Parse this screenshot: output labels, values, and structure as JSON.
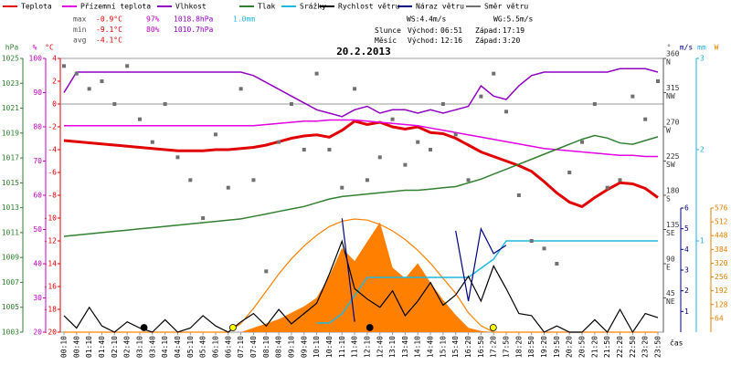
{
  "chart_data": {
    "type": "line",
    "title": "20.2.2013",
    "x_label": "čas",
    "categories": [
      "00:10",
      "00:40",
      "01:10",
      "01:40",
      "02:10",
      "02:40",
      "03:10",
      "03:40",
      "04:10",
      "04:40",
      "05:10",
      "05:40",
      "06:10",
      "06:40",
      "07:10",
      "07:40",
      "08:10",
      "08:40",
      "09:10",
      "09:40",
      "10:10",
      "10:40",
      "11:10",
      "11:40",
      "12:10",
      "12:40",
      "13:10",
      "13:40",
      "14:10",
      "14:40",
      "15:10",
      "15:40",
      "16:20",
      "16:50",
      "17:20",
      "17:50",
      "18:20",
      "18:50",
      "19:20",
      "19:50",
      "20:20",
      "20:50",
      "21:20",
      "21:50",
      "22:20",
      "22:50",
      "23:20",
      "23:50"
    ],
    "axes": [
      {
        "unit": "hPa",
        "color": "#308030",
        "lim": [
          1003,
          1025
        ],
        "ticks": [
          1025,
          1023,
          1021,
          1019,
          1017,
          1015,
          1013,
          1011,
          1009,
          1007,
          1005,
          1003
        ]
      },
      {
        "unit": "%",
        "color": "#c000c0",
        "lim": [
          20,
          100
        ],
        "ticks": [
          100,
          90,
          80,
          70,
          60,
          50,
          40,
          30,
          20
        ]
      },
      {
        "unit": "°C",
        "color": "#e00000",
        "lim": [
          -20,
          4
        ],
        "ticks": [
          4,
          2,
          0,
          -2,
          -4,
          -6,
          -8,
          -10,
          -12,
          -14,
          -16,
          -18,
          -20
        ]
      },
      {
        "unit": "°",
        "color": "#555555",
        "lim": [
          0,
          360
        ],
        "ticks": [
          360,
          315,
          270,
          225,
          180,
          135,
          90,
          45
        ],
        "compass": [
          "N",
          "NW",
          "W",
          "SW",
          "S",
          "SE",
          "E",
          "NE"
        ]
      },
      {
        "unit": "m/s",
        "color": "#000080",
        "lim": [
          0,
          6
        ],
        "ticks": [
          6,
          5,
          4,
          3,
          2,
          1
        ]
      },
      {
        "unit": "mm",
        "color": "#20b0e0",
        "lim": [
          0,
          3
        ],
        "ticks": [
          3,
          2,
          1
        ]
      },
      {
        "unit": "W",
        "color": "#e08000",
        "lim": [
          0,
          576
        ],
        "ticks": [
          576,
          512,
          448,
          384,
          320,
          256,
          192,
          128,
          64
        ]
      }
    ],
    "radiation": {
      "axis": "W",
      "color": "#ff8000",
      "values": [
        0,
        0,
        0,
        0,
        0,
        0,
        0,
        0,
        0,
        0,
        0,
        0,
        0,
        0,
        0,
        20,
        40,
        60,
        90,
        120,
        160,
        260,
        390,
        330,
        420,
        510,
        300,
        250,
        320,
        230,
        150,
        80,
        20,
        5,
        0,
        0,
        0,
        0,
        0,
        0,
        0,
        0,
        0,
        0,
        0,
        0,
        0,
        0
      ],
      "max_values": [
        0,
        0,
        0,
        0,
        0,
        0,
        0,
        0,
        0,
        0,
        0,
        0,
        0,
        0,
        40,
        110,
        190,
        270,
        340,
        400,
        450,
        490,
        515,
        525,
        520,
        500,
        470,
        430,
        380,
        320,
        250,
        180,
        90,
        30,
        0,
        0,
        0,
        0,
        0,
        0,
        0,
        0,
        0,
        0,
        0,
        0,
        0,
        0
      ]
    },
    "series": [
      {
        "name": "Teplota",
        "color": "#e00000",
        "axis": "°C",
        "values": [
          -3.2,
          -3.3,
          -3.4,
          -3.5,
          -3.6,
          -3.7,
          -3.8,
          -3.9,
          -4.0,
          -4.1,
          -4.1,
          -4.1,
          -4.0,
          -4.0,
          -3.9,
          -3.8,
          -3.6,
          -3.3,
          -3.0,
          -2.8,
          -2.7,
          -2.9,
          -2.3,
          -1.5,
          -1.8,
          -1.6,
          -2.0,
          -2.2,
          -2.0,
          -2.5,
          -2.6,
          -3.0,
          -3.6,
          -4.2,
          -4.6,
          -5.0,
          -5.4,
          -5.9,
          -6.8,
          -7.8,
          -8.6,
          -9.0,
          -8.2,
          -7.5,
          -6.9,
          -7.0,
          -7.4,
          -8.2
        ]
      },
      {
        "name": "Přízemní teplota",
        "color": "#e000e0",
        "axis": "°C",
        "values": [
          -1.9,
          -1.9,
          -1.9,
          -1.9,
          -1.9,
          -1.9,
          -1.9,
          -1.9,
          -1.9,
          -1.9,
          -1.9,
          -1.9,
          -1.9,
          -1.9,
          -1.9,
          -1.9,
          -1.8,
          -1.7,
          -1.6,
          -1.5,
          -1.5,
          -1.4,
          -1.4,
          -1.4,
          -1.5,
          -1.6,
          -1.7,
          -1.8,
          -1.9,
          -2.1,
          -2.3,
          -2.5,
          -2.7,
          -2.9,
          -3.1,
          -3.3,
          -3.5,
          -3.7,
          -3.9,
          -4.0,
          -4.1,
          -4.2,
          -4.3,
          -4.4,
          -4.5,
          -4.5,
          -4.6,
          -4.6
        ]
      },
      {
        "name": "Vlhkost",
        "color": "#9000c0",
        "axis": "%",
        "values": [
          90,
          96,
          96,
          96,
          96,
          96,
          96,
          96,
          96,
          96,
          96,
          96,
          96,
          96,
          96,
          95,
          93,
          91,
          89,
          87,
          85,
          84,
          83,
          85,
          86,
          84,
          85,
          85,
          84,
          85,
          84,
          85,
          86,
          92,
          89,
          88,
          92,
          95,
          96,
          96,
          96,
          96,
          96,
          96,
          97,
          97,
          97,
          96
        ]
      },
      {
        "name": "Tlak",
        "color": "#308030",
        "axis": "hPa",
        "values": [
          1010.7,
          1010.8,
          1010.9,
          1011.0,
          1011.1,
          1011.2,
          1011.3,
          1011.4,
          1011.5,
          1011.6,
          1011.7,
          1011.8,
          1011.9,
          1012.0,
          1012.1,
          1012.3,
          1012.5,
          1012.7,
          1012.9,
          1013.1,
          1013.4,
          1013.7,
          1013.9,
          1014.0,
          1014.1,
          1014.2,
          1014.3,
          1014.4,
          1014.4,
          1014.5,
          1014.6,
          1014.7,
          1015.0,
          1015.3,
          1015.7,
          1016.1,
          1016.5,
          1016.9,
          1017.3,
          1017.7,
          1018.1,
          1018.5,
          1018.8,
          1018.6,
          1018.2,
          1018.1,
          1018.4,
          1018.7
        ]
      },
      {
        "name": "Srážky",
        "color": "#20b8e0",
        "axis": "mm",
        "values": [
          null,
          null,
          null,
          null,
          null,
          null,
          null,
          null,
          null,
          null,
          null,
          null,
          null,
          null,
          null,
          null,
          null,
          null,
          null,
          null,
          0.1,
          0.1,
          0.2,
          0.4,
          0.6,
          0.6,
          0.6,
          0.6,
          0.6,
          0.6,
          0.6,
          0.6,
          0.6,
          0.7,
          0.8,
          1.0,
          1.0,
          1.0,
          1.0,
          1.0,
          1.0,
          1.0,
          1.0,
          1.0,
          1.0,
          1.0,
          1.0,
          1.0
        ]
      },
      {
        "name": "Rychlost větru",
        "color": "#000000",
        "axis": "m/s",
        "values": [
          0.8,
          0.2,
          1.2,
          0.3,
          0,
          0.5,
          0.2,
          0,
          0.6,
          0,
          0.2,
          0.8,
          0.3,
          0,
          0.5,
          0.9,
          0.3,
          1.1,
          0.4,
          0.9,
          1.4,
          2.8,
          4.4,
          2.1,
          1.6,
          1.2,
          2.0,
          0.8,
          1.5,
          2.4,
          1.3,
          1.8,
          2.7,
          1.5,
          3.2,
          2.1,
          0.9,
          0.8,
          0,
          0.3,
          0,
          0,
          0.6,
          0,
          1.1,
          0,
          0.9,
          0.7
        ]
      },
      {
        "name": "Náraz větru",
        "color": "#000080",
        "axis": "m/s",
        "values": [
          null,
          null,
          null,
          null,
          null,
          null,
          null,
          null,
          null,
          null,
          null,
          null,
          null,
          null,
          null,
          null,
          null,
          null,
          null,
          null,
          null,
          null,
          5.5,
          0.5,
          null,
          null,
          null,
          null,
          null,
          null,
          null,
          4.9,
          1.5,
          5.0,
          3.8,
          4.2,
          null,
          null,
          null,
          null,
          null,
          null,
          null,
          null,
          null,
          null,
          null,
          null
        ]
      },
      {
        "name": "Směr větru",
        "color": "#707070",
        "axis": "°",
        "dots": true,
        "values": [
          350,
          340,
          320,
          330,
          300,
          350,
          280,
          250,
          300,
          230,
          200,
          150,
          260,
          190,
          320,
          200,
          80,
          250,
          300,
          240,
          340,
          240,
          190,
          320,
          200,
          230,
          280,
          220,
          250,
          240,
          300,
          260,
          200,
          310,
          340,
          290,
          180,
          120,
          110,
          90,
          210,
          250,
          300,
          190,
          200,
          310,
          280,
          330
        ]
      }
    ],
    "stats": [
      {
        "label": "max",
        "items": [
          {
            "text": "-0.9°C",
            "color": "#e00000"
          },
          {
            "text": "97%",
            "color": "#c000c0"
          },
          {
            "text": "1018.8hPa",
            "color": "#9000c0"
          },
          {
            "text": "1.0mm",
            "color": "#20b8e0"
          }
        ]
      },
      {
        "label": "min",
        "items": [
          {
            "text": "-9.1°C",
            "color": "#e00000"
          },
          {
            "text": "80%",
            "color": "#c000c0"
          },
          {
            "text": "1010.7hPa",
            "color": "#9000c0"
          }
        ]
      },
      {
        "label": "avg",
        "items": [
          {
            "text": "-4.1°C",
            "color": "#e00000"
          }
        ]
      }
    ],
    "wind_stats": [
      "WS:4.4m/s",
      "WG:5.5m/s"
    ],
    "sun": {
      "name": "Slunce",
      "rise_text": "Východ:",
      "rise": "06:51",
      "set_text": "Západ:",
      "set": "17:19",
      "color": "#ffff00"
    },
    "moon": {
      "name": "Měsíc",
      "rise_text": "Východ:",
      "rise": "12:16",
      "set_text": "Západ:",
      "set": "3:20",
      "color": "#000000"
    }
  }
}
